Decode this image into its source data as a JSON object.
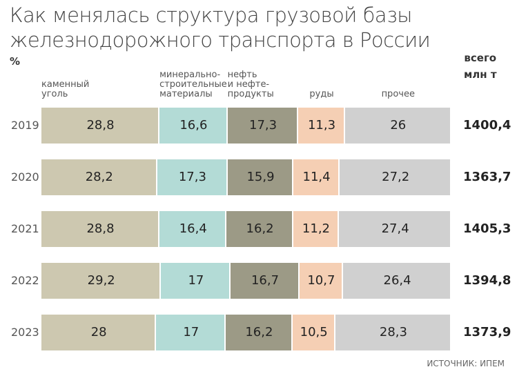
{
  "chart_data": {
    "type": "stacked-bar-100",
    "title": "Как менялась структура грузовой базы\nжелезнодорожного транспорта в России",
    "unit": "%",
    "categories": [
      "2019",
      "2020",
      "2021",
      "2022",
      "2023"
    ],
    "xlim": [
      0,
      100
    ],
    "series": [
      {
        "name": "каменный\nуголь",
        "color": "#cdc8b0",
        "values": [
          28.8,
          28.2,
          28.8,
          29.2,
          28
        ],
        "value_labels": [
          "28,8",
          "28,2",
          "28,8",
          "29,2",
          "28"
        ]
      },
      {
        "name": "минерально-\nстроительные\nматериалы",
        "color": "#b3dbd6",
        "values": [
          16.6,
          17.3,
          16.4,
          17,
          17
        ],
        "value_labels": [
          "16,6",
          "17,3",
          "16,4",
          "17",
          "17"
        ]
      },
      {
        "name": "нефть\nи нефте-\nпродукты",
        "color": "#9c9a86",
        "values": [
          17.3,
          15.9,
          16.2,
          16.7,
          16.2
        ],
        "value_labels": [
          "17,3",
          "15,9",
          "16,2",
          "16,7",
          "16,2"
        ]
      },
      {
        "name": "руды",
        "color": "#f5cfb4",
        "values": [
          11.3,
          11.4,
          11.2,
          10.7,
          10.5
        ],
        "value_labels": [
          "11,3",
          "11,4",
          "11,2",
          "10,7",
          "10,5"
        ]
      },
      {
        "name": "прочее",
        "color": "#d0d0d0",
        "values": [
          26,
          27.2,
          27.4,
          26.4,
          28.3
        ],
        "value_labels": [
          "26",
          "27,2",
          "27,4",
          "26,4",
          "28,3"
        ]
      }
    ],
    "totals": {
      "header": "всего\nмлн т",
      "values": [
        1400.4,
        1363.7,
        1405.3,
        1394.8,
        1373.9
      ],
      "value_labels": [
        "1400,4",
        "1363,7",
        "1405,3",
        "1394,8",
        "1373,9"
      ]
    },
    "source": "ИСТОЧНИК: ИПЕМ"
  }
}
